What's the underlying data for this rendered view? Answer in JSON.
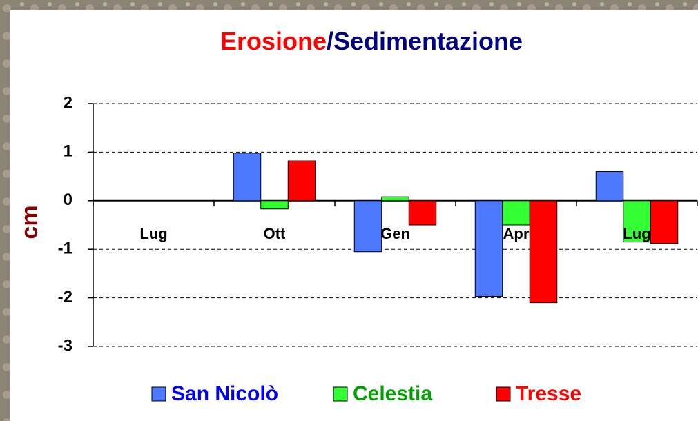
{
  "chart_data": {
    "type": "bar",
    "title": [
      {
        "text": "Erosione",
        "color": "#ff0000"
      },
      {
        "text": "/Sedimentazione",
        "color": "#000080"
      }
    ],
    "ylabel": "cm",
    "categories": [
      "Lug",
      "Ott",
      "Gen",
      "Apr",
      "Lug"
    ],
    "series": [
      {
        "name": "San Nicolò",
        "color": "#4d79ff",
        "label_color": "#0000ff",
        "values": [
          null,
          0.98,
          -1.05,
          -1.97,
          0.6
        ]
      },
      {
        "name": "Celestia",
        "color": "#33ff33",
        "label_color": "#00a000",
        "values": [
          null,
          -0.17,
          0.08,
          -0.5,
          -0.85
        ]
      },
      {
        "name": "Tresse",
        "color": "#ff0000",
        "label_color": "#ff0000",
        "values": [
          null,
          0.82,
          -0.5,
          -2.1,
          -0.88
        ]
      }
    ],
    "ylim": [
      -3,
      2
    ],
    "yticks": [
      -3,
      -2,
      -1,
      0,
      1,
      2
    ],
    "grid": true
  }
}
